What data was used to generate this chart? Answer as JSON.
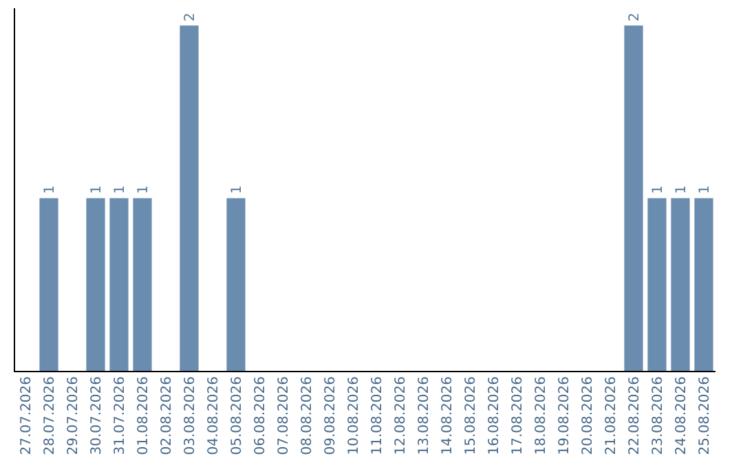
{
  "chart_data": {
    "type": "bar",
    "categories": [
      "27.07.2026",
      "28.07.2026",
      "29.07.2026",
      "30.07.2026",
      "31.07.2026",
      "01.08.2026",
      "02.08.2026",
      "03.08.2026",
      "04.08.2026",
      "05.08.2026",
      "06.08.2026",
      "07.08.2026",
      "08.08.2026",
      "09.08.2026",
      "10.08.2026",
      "11.08.2026",
      "12.08.2026",
      "13.08.2026",
      "14.08.2026",
      "15.08.2026",
      "16.08.2026",
      "17.08.2026",
      "18.08.2026",
      "19.08.2026",
      "20.08.2026",
      "21.08.2026",
      "22.08.2026",
      "23.08.2026",
      "24.08.2026",
      "25.08.2026"
    ],
    "values": [
      0,
      1,
      0,
      1,
      1,
      1,
      0,
      2,
      0,
      1,
      0,
      0,
      0,
      0,
      0,
      0,
      0,
      0,
      0,
      0,
      0,
      0,
      0,
      0,
      0,
      0,
      2,
      1,
      1,
      1
    ],
    "value_labels": [
      null,
      "1",
      null,
      "1",
      "1",
      "1",
      null,
      "2",
      null,
      "1",
      null,
      null,
      null,
      null,
      null,
      null,
      null,
      null,
      null,
      null,
      null,
      null,
      null,
      null,
      null,
      null,
      "2",
      "1",
      "1",
      "1"
    ],
    "color": "#6a8caf",
    "ylim": [
      0,
      2.1
    ],
    "tick_labels": "x"
  }
}
